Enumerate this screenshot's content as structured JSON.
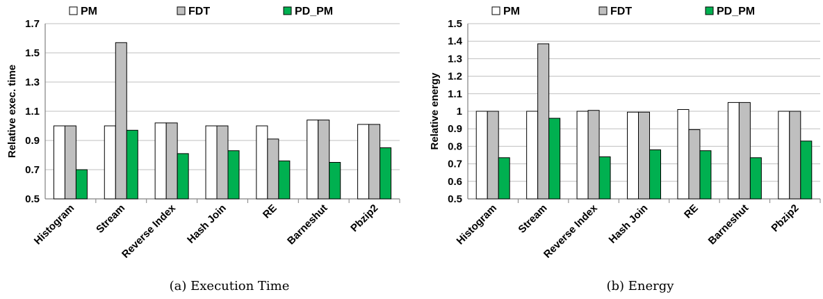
{
  "colors": {
    "PM": "#ffffff",
    "FDT": "#bfbfbf",
    "PD_PM": "#00b050",
    "axis": "#808080",
    "grid": "#bfbfbf",
    "stroke": "#000000"
  },
  "legend": [
    "PM",
    "FDT",
    "PD_PM"
  ],
  "chart_data": [
    {
      "type": "bar",
      "caption": "(a) Execution Time",
      "ylabel": "Relative exec. time",
      "ylim": [
        0.5,
        1.7
      ],
      "yticks": [
        0.5,
        0.7,
        0.9,
        1.1,
        1.3,
        1.5,
        1.7
      ],
      "ytick_labels": [
        "0.5",
        "0.7",
        "0.9",
        "1.1",
        "1.3",
        "1.5",
        "1.7"
      ],
      "grid": true,
      "legend_position": "top",
      "categories": [
        "Histogram",
        "Stream",
        "Reverse Index",
        "Hash Join",
        "RE",
        "Barneshut",
        "Pbzip2"
      ],
      "series": [
        {
          "name": "PM",
          "values": [
            1.0,
            1.0,
            1.02,
            1.0,
            1.0,
            1.04,
            1.01
          ]
        },
        {
          "name": "FDT",
          "values": [
            1.0,
            1.57,
            1.02,
            1.0,
            0.91,
            1.04,
            1.01
          ]
        },
        {
          "name": "PD_PM",
          "values": [
            0.7,
            0.97,
            0.81,
            0.83,
            0.76,
            0.75,
            0.85
          ]
        }
      ]
    },
    {
      "type": "bar",
      "caption": "(b) Energy",
      "ylabel": "Relative energy",
      "ylim": [
        0.5,
        1.5
      ],
      "yticks": [
        0.5,
        0.6,
        0.7,
        0.8,
        0.9,
        1.0,
        1.1,
        1.2,
        1.3,
        1.4,
        1.5
      ],
      "ytick_labels": [
        "0.5",
        "0.6",
        "0.7",
        "0.8",
        "0.9",
        "1",
        "1.1",
        "1.2",
        "1.3",
        "1.4",
        "1.5"
      ],
      "grid": true,
      "legend_position": "top",
      "categories": [
        "Histogram",
        "Stream",
        "Reverse Index",
        "Hash Join",
        "RE",
        "Barneshut",
        "Pbzip2"
      ],
      "series": [
        {
          "name": "PM",
          "values": [
            1.0,
            1.0,
            1.0,
            0.995,
            1.01,
            1.05,
            1.0
          ]
        },
        {
          "name": "FDT",
          "values": [
            1.0,
            1.385,
            1.005,
            0.995,
            0.895,
            1.05,
            1.0
          ]
        },
        {
          "name": "PD_PM",
          "values": [
            0.735,
            0.96,
            0.74,
            0.78,
            0.775,
            0.735,
            0.83
          ]
        }
      ]
    }
  ]
}
